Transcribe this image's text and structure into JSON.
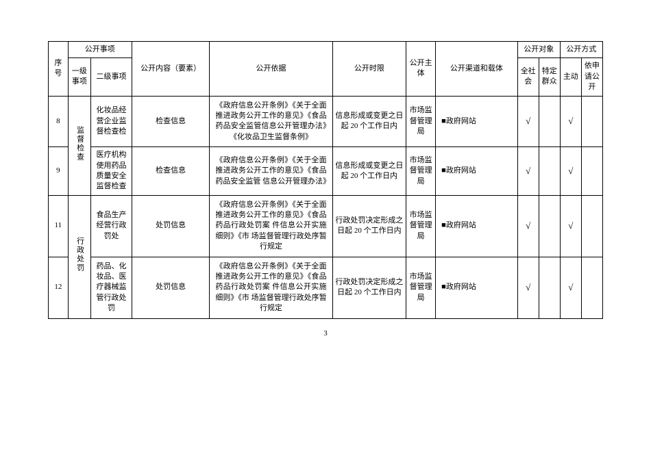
{
  "headers": {
    "seq": "序号",
    "matter": "公开事项",
    "lvl1": "一级事项",
    "lvl2": "二级事项",
    "content": "公开内容（要素）",
    "basis": "公开依据",
    "time": "公开时限",
    "subject": "公开主体",
    "channel": "公开渠道和载体",
    "target": "公开对象",
    "target_all": "全社会",
    "target_specific": "特定群众",
    "method": "公开方式",
    "method_active": "主动",
    "method_request": "依申请公开"
  },
  "rows": [
    {
      "seq": "8",
      "lvl1": "监督检查",
      "lvl2": "化妆品经营企业监督检查检",
      "content": "检查信息",
      "basis": "《政府信息公开条例》《关于全面推进政务公开工作的意见》《食品药品安全监管信息公开管理办法》《化妆品卫生监督条例》",
      "time": "信息形成或变更之日起 20 个工作日内",
      "subject": "市场监督管理局",
      "channel": "■政府网站",
      "all": "√",
      "specific": "",
      "active": "√",
      "request": ""
    },
    {
      "seq": "9",
      "lvl2": "医疗机构使用药品质量安全监督检查",
      "content": "检查信息",
      "basis": "《政府信息公开条例》《关于全面推进政务公开工作的意见》《食品药品安全监管 信息公开管理办法》",
      "time": "信息形成或变更之日起 20 个工作日内",
      "subject": "市场监督管理局",
      "channel": "■政府网站",
      "all": "√",
      "specific": "",
      "active": "√",
      "request": ""
    },
    {
      "seq": "11",
      "lvl1": "行政处罚",
      "lvl2": "食品生产经营行政罚处",
      "content": "处罚信息",
      "basis": "《政府信息公开条例》《关于全面推进政务公开工作的意见》《食品药品行政处罚案 件信息公开实施细则》《市 场监督管理行政处序暂行规定",
      "time": "行政处罚决定形成之日起 20 个工作日内",
      "subject": "市场监督管理局",
      "channel": "■政府网站",
      "all": "√",
      "specific": "",
      "active": "√",
      "request": ""
    },
    {
      "seq": "12",
      "lvl2": "药品、化妆品、医疗器械监管行政处罚",
      "content": "处罚信息",
      "basis": "《政府信息公开条例》《关于全面推进政务公开工作的意见》《食品药品行政处罚案 件信息公开实施细则》《市 场监督管理行政处序暂行规定",
      "time": "行政处罚决定形成之日起 20 个工作日内",
      "subject": "市场监督管理局",
      "channel": "■政府网站",
      "all": "√",
      "specific": "",
      "active": "√",
      "request": ""
    }
  ],
  "page_number": "3"
}
